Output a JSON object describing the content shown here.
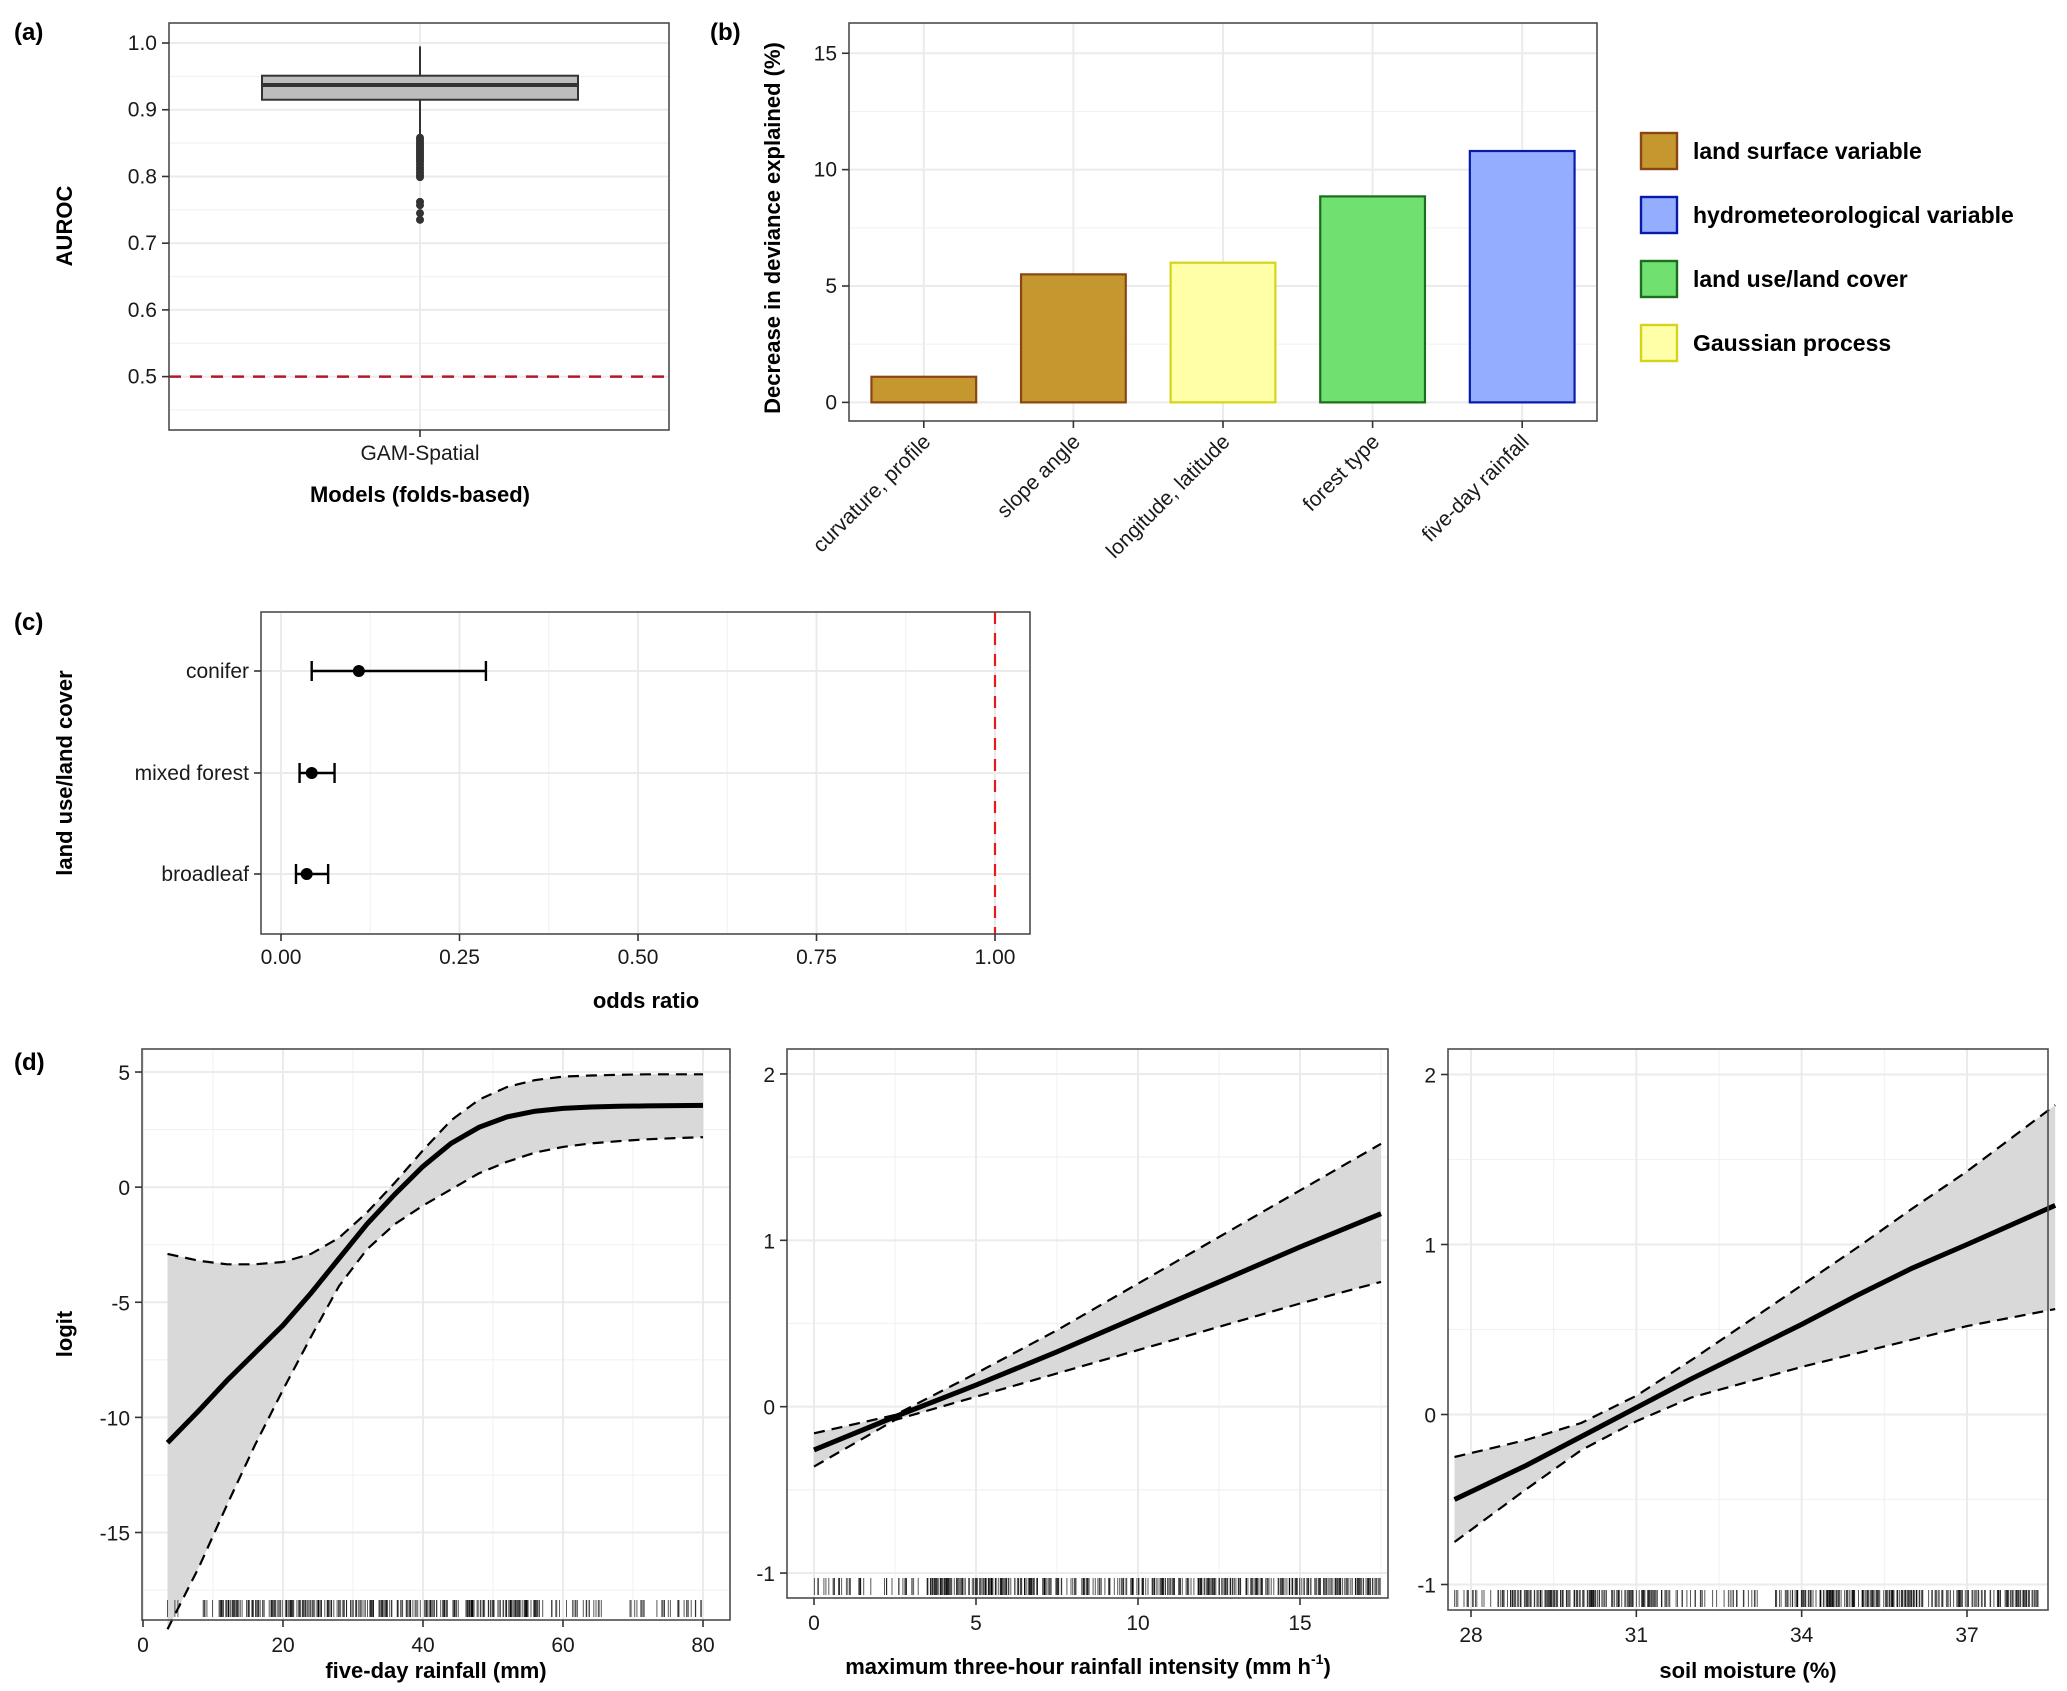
{
  "figure": {
    "panel_tags": [
      "(a)",
      "(b)",
      "(c)",
      "(d)"
    ]
  },
  "chart_data": [
    {
      "id": "a",
      "type": "box",
      "title": "",
      "xlabel": "Models (folds-based)",
      "ylabel": "AUROC",
      "categories": [
        "GAM-Spatial"
      ],
      "ylim": [
        0.42,
        1.03
      ],
      "yticks": [
        0.5,
        0.6,
        0.7,
        0.8,
        0.9,
        1.0
      ],
      "ytick_labels": [
        "0.5",
        "0.6",
        "0.7",
        "0.8",
        "0.9",
        "1.0"
      ],
      "grid": true,
      "box": {
        "q1": 0.915,
        "median": 0.937,
        "q3": 0.951,
        "whisker_low": 0.862,
        "whisker_high": 0.995,
        "outliers": [
          0.858,
          0.855,
          0.852,
          0.849,
          0.846,
          0.843,
          0.84,
          0.837,
          0.834,
          0.831,
          0.828,
          0.825,
          0.822,
          0.818,
          0.814,
          0.81,
          0.806,
          0.802,
          0.799,
          0.762,
          0.757,
          0.745,
          0.735
        ],
        "fill": "#bdbdbd",
        "stroke": "#333333"
      },
      "reference_line": {
        "y": 0.5,
        "color": "#b2182b",
        "style": "dashed"
      }
    },
    {
      "id": "b",
      "type": "bar",
      "title": "",
      "xlabel": "",
      "ylabel": "Decrease in deviance explained (%)",
      "categories": [
        "curvature, profile",
        "slope angle",
        "longitude, latitude",
        "forest type",
        "five-day rainfall"
      ],
      "values": [
        1.1,
        5.5,
        6.0,
        8.85,
        10.8
      ],
      "groups": [
        "land surface variable",
        "land surface variable",
        "Gaussian process",
        "land use/land cover",
        "hydrometeorological variable"
      ],
      "ylim": [
        -0.8,
        16.3
      ],
      "yticks": [
        0,
        5,
        10,
        15
      ],
      "ytick_labels": [
        "0",
        "5",
        "10",
        "15"
      ],
      "grid": true,
      "legend": {
        "placement": "right",
        "items": [
          {
            "label": "land surface variable",
            "fill": "#c4982f",
            "stroke": "#8b4513"
          },
          {
            "label": "hydrometeorological variable",
            "fill": "#94adff",
            "stroke": "#0a1aa8"
          },
          {
            "label": "land use/land cover",
            "fill": "#70e070",
            "stroke": "#1b6e1b"
          },
          {
            "label": "Gaussian process",
            "fill": "#ffffa8",
            "stroke": "#d4d41a"
          }
        ]
      }
    },
    {
      "id": "c",
      "type": "errorbar",
      "title": "",
      "xlabel": "odds ratio",
      "ylabel": "land use/land cover",
      "categories": [
        "conifer",
        "mixed forest",
        "broadleaf"
      ],
      "estimates": [
        0.109,
        0.043,
        0.036
      ],
      "lower": [
        0.043,
        0.026,
        0.021
      ],
      "upper": [
        0.287,
        0.075,
        0.066
      ],
      "xlim": [
        -0.04,
        1.05
      ],
      "xticks": [
        0,
        0.25,
        0.5,
        0.75,
        1.0
      ],
      "xtick_labels": [
        "0.00",
        "0.25",
        "0.50",
        "0.75",
        "1.00"
      ],
      "grid": true,
      "reference_line": {
        "x": 1.0,
        "color": "#e41a1c",
        "style": "dashed"
      }
    },
    {
      "id": "d1",
      "type": "line",
      "title": "",
      "xlabel": "five-day rainfall (mm)",
      "ylabel": "logit",
      "xlim": [
        0,
        80
      ],
      "ylim": [
        -18.8,
        6.0
      ],
      "xticks": [
        0,
        20,
        40,
        60,
        80
      ],
      "xtick_labels": [
        "0",
        "20",
        "40",
        "60",
        "80"
      ],
      "yticks": [
        5,
        0,
        -5,
        -10,
        -15
      ],
      "ytick_labels": [
        "5",
        "0",
        "-5",
        "-10",
        "-15"
      ],
      "grid": true,
      "x": [
        3.5,
        8,
        12,
        16,
        20,
        24,
        28,
        32,
        36,
        40,
        44,
        48,
        52,
        56,
        60,
        64,
        68,
        72,
        76,
        80
      ],
      "series": [
        {
          "name": "fit",
          "style": "solid",
          "values": [
            -11.1,
            -9.7,
            -8.4,
            -7.2,
            -6.0,
            -4.6,
            -3.1,
            -1.6,
            -0.3,
            0.9,
            1.9,
            2.6,
            3.05,
            3.3,
            3.42,
            3.48,
            3.51,
            3.53,
            3.54,
            3.55
          ]
        },
        {
          "name": "upper 95% CI",
          "style": "dashed",
          "values": [
            -2.9,
            -3.2,
            -3.35,
            -3.35,
            -3.25,
            -2.9,
            -2.2,
            -1.1,
            0.2,
            1.6,
            2.9,
            3.8,
            4.35,
            4.65,
            4.8,
            4.85,
            4.88,
            4.9,
            4.9,
            4.9
          ]
        },
        {
          "name": "lower 95% CI",
          "style": "dashed",
          "values": [
            -19.2,
            -16.5,
            -13.8,
            -11.2,
            -8.8,
            -6.5,
            -4.3,
            -2.7,
            -1.6,
            -0.8,
            -0.1,
            0.6,
            1.1,
            1.5,
            1.75,
            1.9,
            2.0,
            2.08,
            2.13,
            2.17
          ]
        }
      ],
      "rug_ranges": [
        [
          3.5,
          5
        ],
        [
          8,
          10
        ],
        [
          10.5,
          57
        ],
        [
          57,
          66
        ],
        [
          69,
          80
        ]
      ]
    },
    {
      "id": "d2",
      "type": "line",
      "title": "",
      "xlabel": "maximum three-hour rainfall intensity (mm h",
      "xlabel_superscript": "-1",
      "xlabel_suffix": ")",
      "ylabel": "",
      "xlim": [
        -0.8,
        17.8
      ],
      "ylim": [
        -1.15,
        2.15
      ],
      "xticks": [
        0,
        5,
        10,
        15
      ],
      "xtick_labels": [
        "0",
        "5",
        "10",
        "15"
      ],
      "yticks": [
        2,
        1,
        0,
        -1
      ],
      "ytick_labels": [
        "2",
        "1",
        "0",
        "-1"
      ],
      "grid": true,
      "x": [
        0,
        2.5,
        5,
        7.5,
        10,
        12.5,
        15,
        17.5
      ],
      "series": [
        {
          "name": "fit",
          "style": "solid",
          "values": [
            -0.26,
            -0.06,
            0.13,
            0.33,
            0.54,
            0.75,
            0.96,
            1.16
          ]
        },
        {
          "name": "upper 95% CI",
          "style": "dashed",
          "values": [
            -0.16,
            -0.05,
            0.2,
            0.46,
            0.74,
            1.02,
            1.3,
            1.58
          ]
        },
        {
          "name": "lower 95% CI",
          "style": "dashed",
          "values": [
            -0.36,
            -0.08,
            0.06,
            0.2,
            0.34,
            0.48,
            0.62,
            0.75
          ]
        }
      ],
      "rug_ranges": [
        [
          0,
          3.5
        ],
        [
          3.5,
          9.8
        ],
        [
          9.8,
          17.5
        ]
      ]
    },
    {
      "id": "d3",
      "type": "line",
      "title": "",
      "xlabel": "soil moisture (%)",
      "ylabel": "",
      "xlim": [
        27.5,
        38.6
      ],
      "ylim": [
        -1.15,
        2.15
      ],
      "xticks": [
        28,
        31,
        34,
        37
      ],
      "xtick_labels": [
        "28",
        "31",
        "34",
        "37"
      ],
      "yticks": [
        2,
        1,
        0,
        -1
      ],
      "ytick_labels": [
        "2",
        "1",
        "0",
        "-1"
      ],
      "grid": true,
      "x": [
        27.7,
        29,
        30,
        31,
        32,
        33,
        34,
        35,
        36,
        37,
        38.6
      ],
      "series": [
        {
          "name": "fit",
          "style": "solid",
          "values": [
            -0.5,
            -0.3,
            -0.13,
            0.04,
            0.21,
            0.37,
            0.53,
            0.7,
            0.86,
            1.0,
            1.23
          ]
        },
        {
          "name": "upper 95% CI",
          "style": "dashed",
          "values": [
            -0.25,
            -0.15,
            -0.05,
            0.11,
            0.32,
            0.54,
            0.76,
            0.98,
            1.21,
            1.43,
            1.82
          ]
        },
        {
          "name": "lower 95% CI",
          "style": "dashed",
          "values": [
            -0.75,
            -0.44,
            -0.21,
            -0.04,
            0.1,
            0.19,
            0.28,
            0.36,
            0.44,
            0.52,
            0.62
          ]
        }
      ],
      "rug_ranges": [
        [
          27.7,
          28.5
        ],
        [
          28.5,
          31.5
        ],
        [
          31.5,
          33.2
        ],
        [
          33.5,
          38.3
        ]
      ]
    }
  ]
}
